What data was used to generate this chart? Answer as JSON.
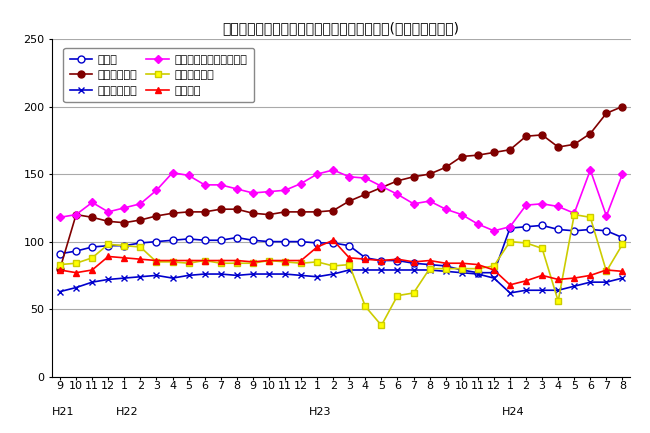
{
  "title": "三重県鉱工業生産及び主要業種別指数の推移(季節調整済指数)",
  "xlabels": [
    "9",
    "10",
    "11",
    "12",
    "1",
    "2",
    "3",
    "4",
    "5",
    "6",
    "7",
    "8",
    "9",
    "10",
    "11",
    "12",
    "1",
    "2",
    "3",
    "4",
    "5",
    "6",
    "7",
    "8",
    "9",
    "10",
    "11",
    "12",
    "1",
    "2",
    "3",
    "4",
    "5",
    "6",
    "7",
    "8"
  ],
  "year_labels": [
    [
      "H21",
      0
    ],
    [
      "H22",
      4
    ],
    [
      "H23",
      16
    ],
    [
      "H24",
      28
    ]
  ],
  "ylim": [
    0,
    250
  ],
  "yticks": [
    0,
    50,
    100,
    150,
    200,
    250
  ],
  "series": [
    {
      "name": "鉱工業",
      "color": "#0000CC",
      "marker": "o",
      "marker_facecolor": "white",
      "linewidth": 1.2,
      "markersize": 5,
      "values": [
        91,
        93,
        96,
        97,
        97,
        99,
        100,
        101,
        102,
        101,
        101,
        103,
        101,
        100,
        100,
        100,
        99,
        99,
        97,
        88,
        86,
        86,
        84,
        83,
        82,
        79,
        77,
        77,
        110,
        111,
        112,
        109,
        108,
        109,
        108,
        103
      ]
    },
    {
      "name": "一般機械工業",
      "color": "#800000",
      "marker": "o",
      "marker_facecolor": "#800000",
      "linewidth": 1.2,
      "markersize": 5,
      "values": [
        80,
        120,
        118,
        115,
        114,
        116,
        119,
        121,
        122,
        122,
        124,
        124,
        121,
        120,
        122,
        122,
        122,
        123,
        130,
        135,
        140,
        145,
        148,
        150,
        155,
        163,
        164,
        166,
        168,
        178,
        179,
        170,
        172,
        180,
        195,
        200
      ]
    },
    {
      "name": "電気機械工業",
      "color": "#0000CC",
      "marker": "x",
      "marker_facecolor": "#0000CC",
      "linewidth": 1.2,
      "markersize": 5,
      "values": [
        63,
        66,
        70,
        72,
        73,
        74,
        75,
        73,
        75,
        76,
        76,
        75,
        76,
        76,
        76,
        75,
        74,
        76,
        79,
        79,
        79,
        79,
        79,
        79,
        78,
        77,
        76,
        73,
        62,
        64,
        64,
        64,
        67,
        70,
        70,
        73
      ]
    },
    {
      "name": "電子部品・デバイス工業",
      "color": "#FF00FF",
      "marker": "D",
      "marker_facecolor": "#FF00FF",
      "linewidth": 1.2,
      "markersize": 4,
      "values": [
        118,
        120,
        129,
        122,
        125,
        128,
        138,
        151,
        149,
        142,
        142,
        139,
        136,
        137,
        138,
        143,
        150,
        153,
        148,
        147,
        141,
        135,
        128,
        130,
        124,
        120,
        113,
        108,
        111,
        127,
        128,
        126,
        121,
        153,
        119,
        150
      ]
    },
    {
      "name": "輸送機械工業",
      "color": "#CCCC00",
      "marker": "s",
      "marker_facecolor": "#FFFF00",
      "linewidth": 1.2,
      "markersize": 5,
      "values": [
        83,
        84,
        88,
        98,
        97,
        96,
        85,
        85,
        84,
        86,
        84,
        84,
        84,
        86,
        85,
        84,
        85,
        82,
        83,
        52,
        38,
        60,
        62,
        80,
        80,
        80,
        80,
        82,
        100,
        99,
        95,
        56,
        120,
        118,
        78,
        98
      ]
    },
    {
      "name": "化学工業",
      "color": "#FF0000",
      "marker": "^",
      "marker_facecolor": "#FF0000",
      "linewidth": 1.2,
      "markersize": 5,
      "values": [
        79,
        77,
        79,
        89,
        88,
        87,
        86,
        86,
        86,
        86,
        86,
        86,
        85,
        86,
        86,
        86,
        96,
        101,
        88,
        87,
        86,
        87,
        85,
        86,
        84,
        84,
        83,
        79,
        68,
        71,
        75,
        72,
        73,
        75,
        79,
        78
      ]
    }
  ],
  "legend_col1": [
    "鉱工業",
    "電気機械工業",
    "輸送機械工業"
  ],
  "legend_col2": [
    "一般機械工業",
    "電子部品・デバイス工業",
    "化学工業"
  ],
  "background_color": "#FFFFFF",
  "grid_color": "#AAAAAA",
  "title_fontsize": 10,
  "axis_fontsize": 8,
  "legend_fontsize": 8
}
